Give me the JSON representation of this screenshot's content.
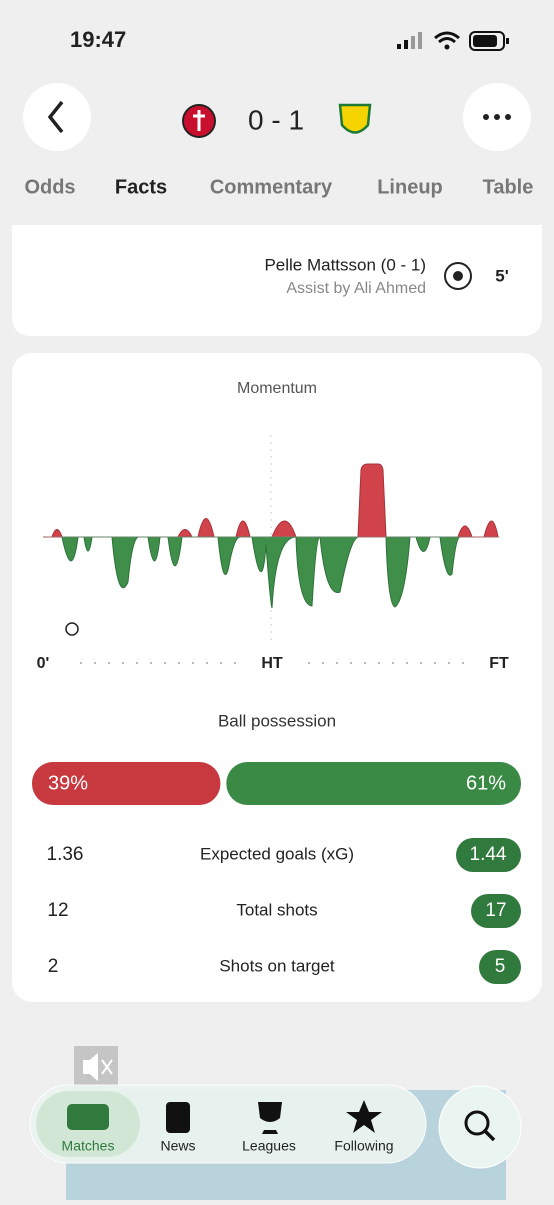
{
  "status_bar": {
    "time": "19:47"
  },
  "header": {
    "score": "0 - 1"
  },
  "tabs": [
    "Odds",
    "Facts",
    "Commentary",
    "Lineup",
    "Table"
  ],
  "event": {
    "player": "Pelle Mattsson (0 - 1)",
    "assist": "Assist by Ali Ahmed",
    "minute": "5'"
  },
  "momentum": {
    "title": "Momentum",
    "labels": [
      "0'",
      "HT",
      "FT"
    ]
  },
  "possession": {
    "title": "Ball possession",
    "home": {
      "value": 39,
      "label": "39%"
    },
    "away": {
      "value": 61,
      "label": "61%"
    }
  },
  "stats": [
    {
      "home": "1.36",
      "label": "Expected goals (xG)",
      "away": "1.44"
    },
    {
      "home": "12",
      "label": "Total shots",
      "away": "17"
    },
    {
      "home": "2",
      "label": "Shots on target",
      "away": "5"
    }
  ],
  "nav": [
    "Matches",
    "News",
    "Leagues",
    "Following"
  ]
}
